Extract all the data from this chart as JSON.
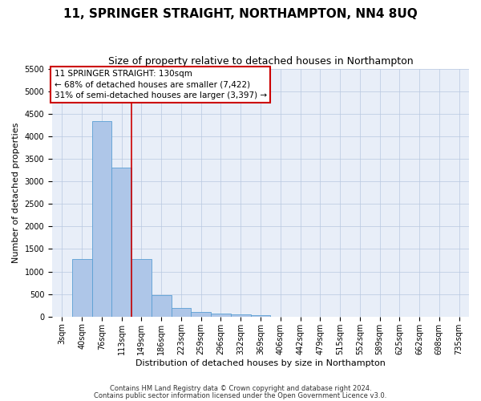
{
  "title": "11, SPRINGER STRAIGHT, NORTHAMPTON, NN4 8UQ",
  "subtitle": "Size of property relative to detached houses in Northampton",
  "xlabel": "Distribution of detached houses by size in Northampton",
  "ylabel": "Number of detached properties",
  "footnote1": "Contains HM Land Registry data © Crown copyright and database right 2024.",
  "footnote2": "Contains public sector information licensed under the Open Government Licence v3.0.",
  "bar_labels": [
    "3sqm",
    "40sqm",
    "76sqm",
    "113sqm",
    "149sqm",
    "186sqm",
    "223sqm",
    "259sqm",
    "296sqm",
    "332sqm",
    "369sqm",
    "406sqm",
    "442sqm",
    "479sqm",
    "515sqm",
    "552sqm",
    "589sqm",
    "625sqm",
    "662sqm",
    "698sqm",
    "735sqm"
  ],
  "bar_values": [
    0,
    1270,
    4340,
    3300,
    1270,
    480,
    200,
    100,
    70,
    50,
    40,
    0,
    0,
    0,
    0,
    0,
    0,
    0,
    0,
    0,
    0
  ],
  "bar_color": "#aec6e8",
  "bar_edge_color": "#5a9fd4",
  "vline_color": "#cc0000",
  "vline_position": 3.5,
  "ylim": [
    0,
    5500
  ],
  "yticks": [
    0,
    500,
    1000,
    1500,
    2000,
    2500,
    3000,
    3500,
    4000,
    4500,
    5000,
    5500
  ],
  "annotation_text": "11 SPRINGER STRAIGHT: 130sqm\n← 68% of detached houses are smaller (7,422)\n31% of semi-detached houses are larger (3,397) →",
  "annotation_box_color": "#ffffff",
  "annotation_border_color": "#cc0000",
  "title_fontsize": 11,
  "subtitle_fontsize": 9,
  "axis_label_fontsize": 8,
  "tick_fontsize": 7,
  "annotation_fontsize": 7.5,
  "footnote_fontsize": 6,
  "background_color": "#e8eef8"
}
